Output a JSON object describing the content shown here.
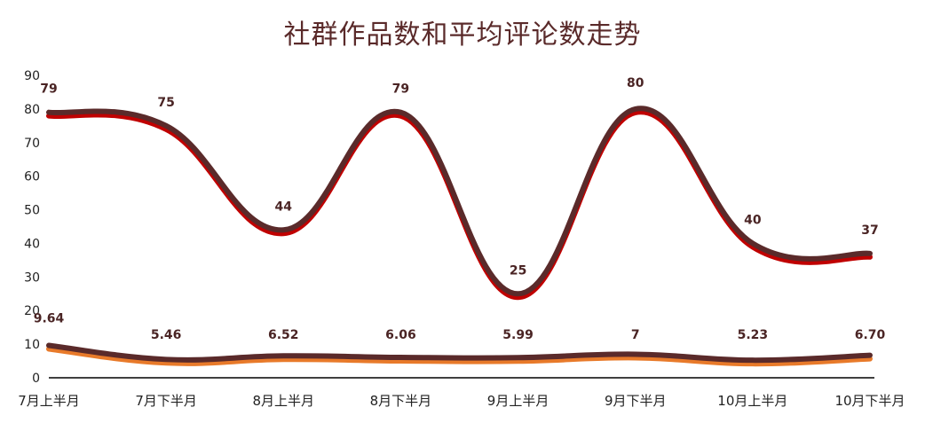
{
  "chart_data": {
    "type": "line",
    "title": "社群作品数和平均评论数走势",
    "categories": [
      "7月上半月",
      "7月下半月",
      "8月上半月",
      "8月下半月",
      "9月上半月",
      "9月下半月",
      "10月上半月",
      "10月下半月"
    ],
    "ylim": [
      0,
      90
    ],
    "yticks": [
      0,
      10,
      20,
      30,
      40,
      50,
      60,
      70,
      80,
      90
    ],
    "grid": false,
    "legend": "none",
    "series": [
      {
        "values": [
          79,
          75,
          44,
          79,
          25,
          80,
          40,
          37
        ],
        "labels": [
          "79",
          "75",
          "44",
          "79",
          "25",
          "80",
          "40",
          "37"
        ],
        "color": "#5a2a2a",
        "shadow_color": "#c00000"
      },
      {
        "values": [
          9.64,
          5.46,
          6.52,
          6.06,
          5.99,
          7,
          5.23,
          6.7
        ],
        "labels": [
          "9.64",
          "5.46",
          "6.52",
          "6.06",
          "5.99",
          "7",
          "5.23",
          "6.70"
        ],
        "color": "#5a2a2a",
        "shadow_color": "#e87a2a"
      }
    ]
  }
}
